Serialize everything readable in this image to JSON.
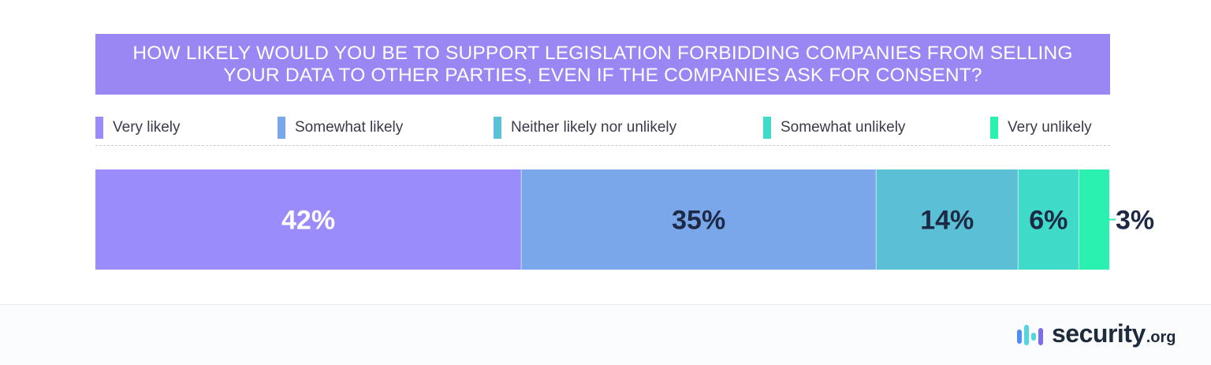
{
  "chart_data": {
    "type": "bar",
    "orientation": "horizontal",
    "stacked": true,
    "percent_of_total": true,
    "title": "HOW LIKELY WOULD YOU BE TO SUPPORT LEGISLATION FORBIDDING COMPANIES FROM SELLING YOUR DATA TO OTHER PARTIES, EVEN IF THE COMPANIES ASK FOR CONSENT?",
    "categories": [
      "Very likely",
      "Somewhat likely",
      "Neither likely nor unlikely",
      "Somewhat unlikely",
      "Very unlikely"
    ],
    "values": [
      42,
      35,
      14,
      6,
      3
    ],
    "data_labels": [
      "42%",
      "35%",
      "14%",
      "6%",
      "3%"
    ],
    "colors": [
      "#9b8cfb",
      "#7aa6ea",
      "#5bc0d6",
      "#3fdac8",
      "#2af0b0"
    ],
    "legend": "top",
    "grid": false
  },
  "logo": {
    "name": "security",
    "tld": ".org"
  },
  "colors": {
    "title_bg": "#9b87f3",
    "label_dark": "#1e2a45",
    "label_light": "#ffffff"
  }
}
